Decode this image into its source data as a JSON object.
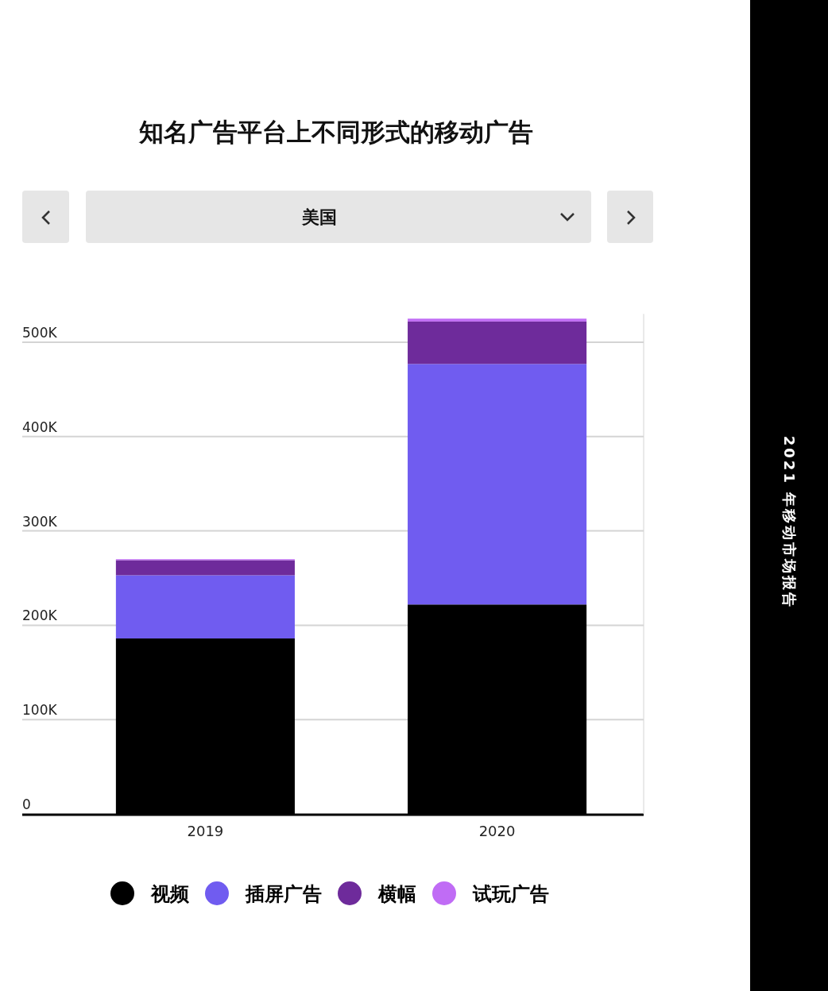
{
  "chart_data": {
    "type": "bar",
    "title": "知名广告平台上不同形式的移动广告",
    "subtitle": "美国",
    "stacked": true,
    "categories": [
      "2019",
      "2020"
    ],
    "series": [
      {
        "name": "视频",
        "color": "#000000",
        "values": [
          186,
          222
        ]
      },
      {
        "name": "插屏广告",
        "color": "#705cf0",
        "values": [
          67,
          255
        ]
      },
      {
        "name": "横幅",
        "color": "#6e2b9b",
        "values": [
          16,
          45
        ]
      },
      {
        "name": "试玩广告",
        "color": "#c06cf5",
        "values": [
          1,
          3
        ]
      }
    ],
    "ylim": [
      0,
      530
    ],
    "yticks": [
      0,
      {
        "value": 100,
        "label": "100K"
      },
      {
        "value": 200,
        "label": "200K"
      },
      {
        "value": 300,
        "label": "300K"
      },
      {
        "value": 400,
        "label": "400K"
      },
      {
        "value": 500,
        "label": "500K"
      }
    ],
    "grid": "y",
    "legend": "bottom",
    "annotations": [
      "2021 年移动市场报告"
    ]
  }
}
